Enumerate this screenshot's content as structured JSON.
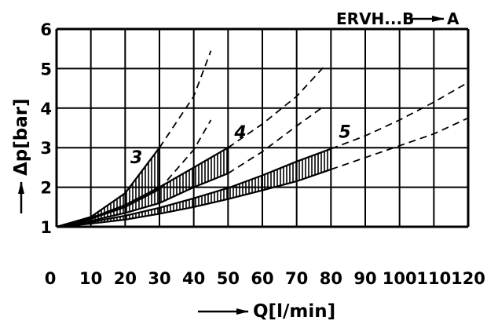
{
  "chart_data": {
    "type": "line",
    "title": "ERVH...B",
    "title_arrow_target": "A",
    "xlabel": "Q[l/min]",
    "ylabel": "Δp[bar]",
    "xlim": [
      0,
      120
    ],
    "ylim": [
      1,
      6
    ],
    "x_ticks": [
      "0",
      "10",
      "20",
      "30",
      "40",
      "50",
      "60",
      "70",
      "80",
      "90",
      "100",
      "110",
      "120"
    ],
    "y_ticks": [
      "1",
      "2",
      "3",
      "4",
      "5",
      "6"
    ],
    "grid": true,
    "series": [
      {
        "name": "3",
        "upper": [
          [
            0,
            1.0
          ],
          [
            10,
            1.25
          ],
          [
            20,
            1.85
          ],
          [
            30,
            3.0
          ],
          [
            40,
            4.3
          ],
          [
            45,
            5.45
          ]
        ],
        "lower": [
          [
            0,
            1.0
          ],
          [
            10,
            1.2
          ],
          [
            20,
            1.5
          ],
          [
            30,
            1.95
          ],
          [
            40,
            2.95
          ],
          [
            45,
            3.7
          ]
        ],
        "band_until": 30
      },
      {
        "name": "4",
        "upper": [
          [
            0,
            1.0
          ],
          [
            10,
            1.22
          ],
          [
            20,
            1.55
          ],
          [
            30,
            2.0
          ],
          [
            40,
            2.5
          ],
          [
            50,
            3.0
          ],
          [
            60,
            3.6
          ],
          [
            70,
            4.3
          ],
          [
            78,
            5.05
          ]
        ],
        "lower": [
          [
            0,
            1.0
          ],
          [
            10,
            1.15
          ],
          [
            20,
            1.35
          ],
          [
            30,
            1.6
          ],
          [
            40,
            2.0
          ],
          [
            50,
            2.35
          ],
          [
            60,
            2.9
          ],
          [
            70,
            3.55
          ],
          [
            78,
            4.05
          ]
        ],
        "band_until": 50
      },
      {
        "name": "5",
        "upper": [
          [
            0,
            1.0
          ],
          [
            10,
            1.12
          ],
          [
            20,
            1.28
          ],
          [
            30,
            1.48
          ],
          [
            40,
            1.72
          ],
          [
            50,
            1.98
          ],
          [
            60,
            2.3
          ],
          [
            70,
            2.65
          ],
          [
            80,
            2.97
          ],
          [
            90,
            3.3
          ],
          [
            100,
            3.7
          ],
          [
            110,
            4.15
          ],
          [
            120,
            4.65
          ]
        ],
        "lower": [
          [
            0,
            1.0
          ],
          [
            10,
            1.08
          ],
          [
            20,
            1.18
          ],
          [
            30,
            1.33
          ],
          [
            40,
            1.5
          ],
          [
            50,
            1.7
          ],
          [
            60,
            1.92
          ],
          [
            70,
            2.15
          ],
          [
            80,
            2.45
          ],
          [
            90,
            2.75
          ],
          [
            100,
            3.05
          ],
          [
            110,
            3.35
          ],
          [
            120,
            3.75
          ]
        ],
        "band_until": 80
      }
    ]
  }
}
